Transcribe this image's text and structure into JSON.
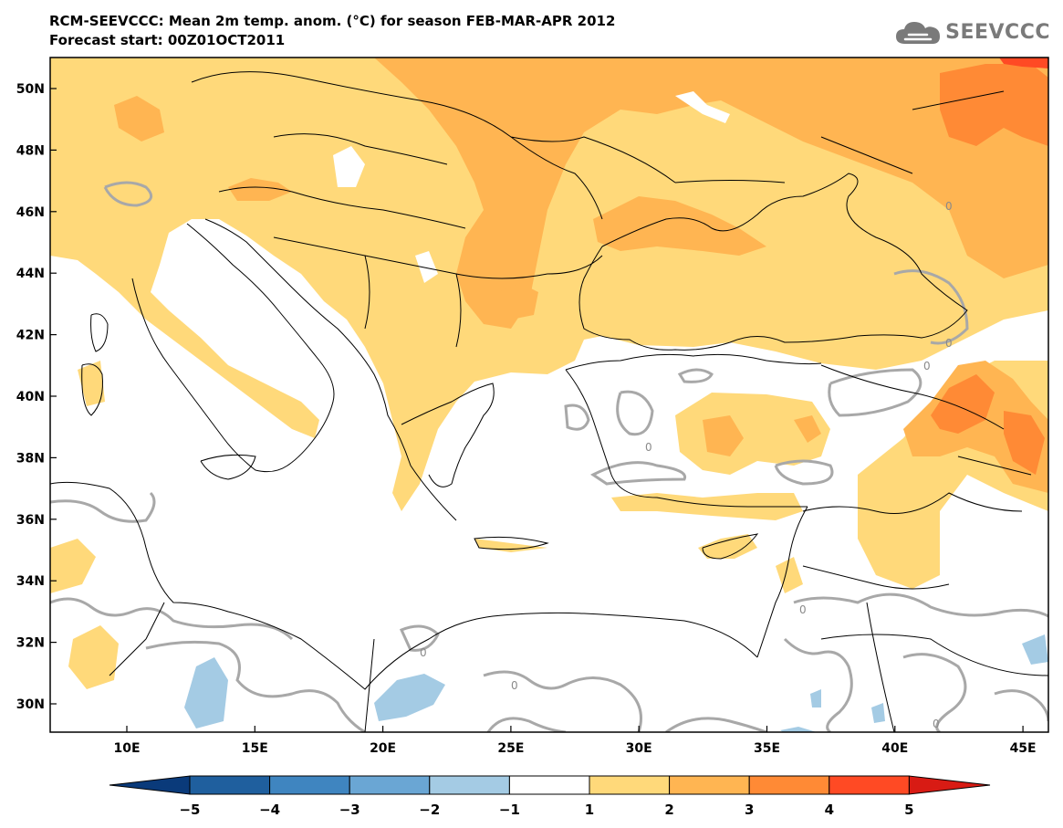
{
  "header": {
    "title_line1": "RCM-SEEVCCC: Mean 2m temp. anom. (°C) for season FEB-MAR-APR 2012",
    "title_line2": "Forecast start: 00Z01OCT2011",
    "logo_text": "SEEVCCC"
  },
  "map": {
    "lon_ticks": [
      "10E",
      "15E",
      "20E",
      "25E",
      "30E",
      "35E",
      "40E",
      "45E"
    ],
    "lat_ticks": [
      "50N",
      "48N",
      "46N",
      "44N",
      "42N",
      "40N",
      "38N",
      "36N",
      "34N",
      "32N",
      "30N"
    ],
    "contour_labels": [
      "0",
      "0",
      "0",
      "0",
      "0",
      "0",
      "0",
      "0"
    ]
  },
  "colorbar": {
    "labels": [
      "-5",
      "-4",
      "-3",
      "-2",
      "-1",
      "1",
      "2",
      "3",
      "4",
      "5"
    ],
    "colors": [
      "#0a3a7a",
      "#1f5f9e",
      "#3f85c0",
      "#6aa6d4",
      "#a4cbe4",
      "#ffffff",
      "#ffd97a",
      "#ffb552",
      "#ff8a35",
      "#ff4a24",
      "#d81b14"
    ]
  }
}
